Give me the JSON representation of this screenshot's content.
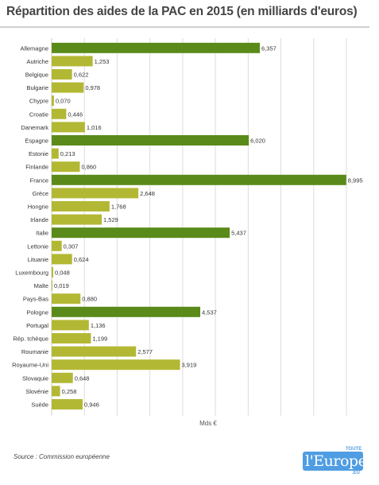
{
  "chart_data": {
    "type": "bar",
    "orientation": "horizontal",
    "title": "Répartition des aides de la PAC en 2015 (en milliards d'euros)",
    "xlabel": "Mds €",
    "ylabel": "",
    "xlim": [
      0,
      9
    ],
    "grid": true,
    "legend": "none",
    "colors": {
      "highlight": "#5a8a1a",
      "normal": "#b3b834"
    },
    "categories": [
      "Allemagne",
      "Autriche",
      "Belgique",
      "Bulgarie",
      "Chypre",
      "Croatie",
      "Danemark",
      "Espagne",
      "Estonie",
      "Finlande",
      "France",
      "Grèce",
      "Hongrie",
      "Irlande",
      "Italie",
      "Lettonie",
      "Lituanie",
      "Luxembourg",
      "Malte",
      "Pays-Bas",
      "Pologne",
      "Portugal",
      "Rép. tchèque",
      "Roumanie",
      "Royaume-Uni",
      "Slovaquie",
      "Slovénie",
      "Suède"
    ],
    "values": [
      6.357,
      1.253,
      0.622,
      0.978,
      0.07,
      0.446,
      1.016,
      6.02,
      0.213,
      0.86,
      8.995,
      2.648,
      1.768,
      1.529,
      5.437,
      0.307,
      0.624,
      0.048,
      0.019,
      0.88,
      4.537,
      1.136,
      1.199,
      2.577,
      3.919,
      0.648,
      0.258,
      0.946
    ],
    "value_labels": [
      "6,357",
      "1,253",
      "0,622",
      "0,978",
      "0,070",
      "0,446",
      "1,016",
      "6,020",
      "0,213",
      "0,860",
      "8,995",
      "2,648",
      "1,768",
      "1,529",
      "5,437",
      "0,307",
      "0,624",
      "0,048",
      "0,019",
      "0,880",
      "4,537",
      "1,136",
      "1,199",
      "2,577",
      "3,919",
      "0,648",
      "0,258",
      "0,946"
    ],
    "highlighted": [
      "Allemagne",
      "Espagne",
      "France",
      "Italie",
      "Pologne"
    ]
  },
  "source": "Source : Commission européenne",
  "logo": {
    "main": "l'Europe",
    "top": "TOUTE",
    "suffix": ".EU"
  }
}
